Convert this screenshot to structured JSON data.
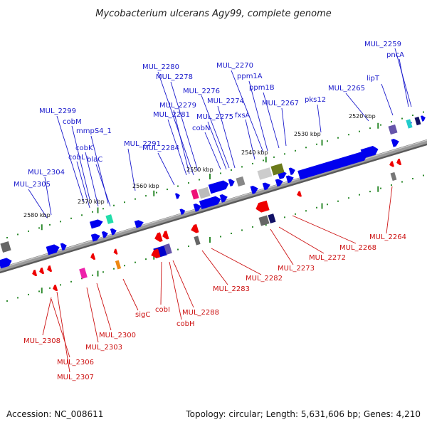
{
  "title": "Mycobacterium ulcerans Agy99, complete genome",
  "footer": {
    "accession": "Accession: NC_008611",
    "topology": "Topology: circular; Length: 5,631,606 bp; Genes: 4,210"
  },
  "colors": {
    "forward_gene": "#0000ee",
    "reverse_gene": "#ee0000",
    "forward_label": "#1a1acc",
    "reverse_label": "#cc1111",
    "backbone": "#8a8a8a",
    "tick_dot": "#2e8b2e"
  },
  "kbp_labels": [
    "2520 kbp",
    "2530 kbp",
    "2540 kbp",
    "2550 kbp",
    "2560 kbp",
    "2570 kbp",
    "2580 kbp"
  ],
  "top_labels": [
    "MUL_2259",
    "pncA",
    "lipT",
    "MUL_2265",
    "pks12",
    "MUL_2267",
    "ppm1B",
    "ppm1A",
    "MUL_2270",
    "fxsA",
    "MUL_2274",
    "MUL_2275",
    "MUL_2276",
    "cobN",
    "MUL_2278",
    "MUL_2280",
    "MUL_2279",
    "MUL_2281",
    "MUL_2284",
    "MUL_2291",
    "MUL_2299",
    "cobM",
    "mmpS4_1",
    "cobK",
    "cobL",
    "blaC",
    "MUL_2304",
    "MUL_2305"
  ],
  "bottom_labels": [
    "MUL_2264",
    "MUL_2268",
    "MUL_2272",
    "MUL_2273",
    "MUL_2282",
    "MUL_2283",
    "MUL_2288",
    "cobI",
    "cobH",
    "sigC",
    "MUL_2300",
    "MUL_2303",
    "MUL_2308",
    "MUL_2306",
    "MUL_2307"
  ]
}
